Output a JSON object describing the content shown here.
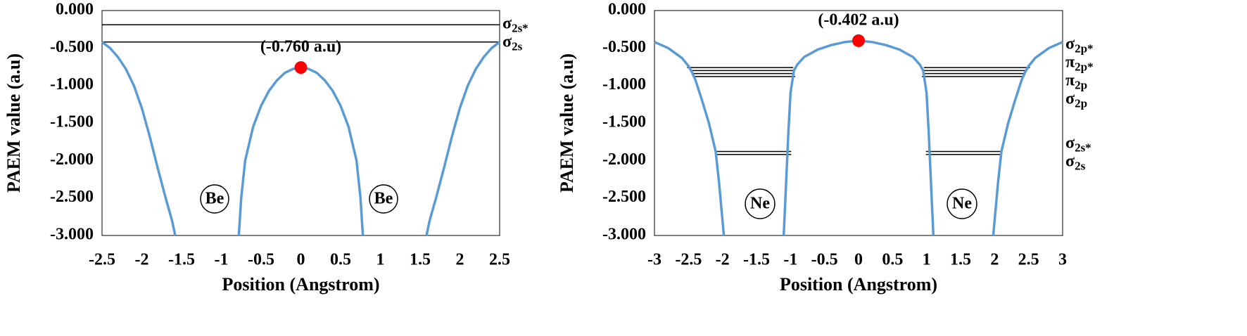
{
  "chart_data": [
    {
      "type": "line",
      "y_label": "PAEM value (a.u)",
      "x_label": "Position (Angstrom)",
      "xlim": [
        -2.5,
        2.5
      ],
      "xticks": [
        -2.5,
        -2,
        -1.5,
        -1,
        -0.5,
        0,
        0.5,
        1,
        1.5,
        2,
        2.5
      ],
      "ylim": [
        -3,
        0
      ],
      "yticks": [
        {
          "value": 0,
          "label": "0.000"
        },
        {
          "value": -0.5,
          "label": "-0.500"
        },
        {
          "value": -1,
          "label": "-1.000"
        },
        {
          "value": -1.5,
          "label": "-1.500"
        },
        {
          "value": -2,
          "label": "-2.000"
        },
        {
          "value": -2.5,
          "label": "-2.500"
        },
        {
          "value": -3,
          "label": "-3.000"
        }
      ],
      "grid": false,
      "series": [
        {
          "color": "#5b9bd5",
          "x": [
            -2.5,
            -2.4,
            -2.3,
            -2.2,
            -2.1,
            -2.0,
            -1.9,
            -1.8,
            -1.7,
            -1.62,
            -1.58,
            null,
            -0.78,
            -0.75,
            -0.7,
            -0.6,
            -0.5,
            -0.4,
            -0.3,
            -0.2,
            -0.1,
            0,
            0.1,
            0.2,
            0.3,
            0.4,
            0.5,
            0.6,
            0.7,
            0.75,
            0.78,
            null,
            1.58,
            1.62,
            1.7,
            1.8,
            1.9,
            2.0,
            2.1,
            2.2,
            2.3,
            2.4,
            2.5
          ],
          "values": [
            -0.42,
            -0.5,
            -0.62,
            -0.78,
            -1.0,
            -1.3,
            -1.68,
            -2.1,
            -2.5,
            -2.8,
            -3,
            null,
            -3,
            -2.5,
            -2.0,
            -1.55,
            -1.27,
            -1.07,
            -0.93,
            -0.83,
            -0.78,
            -0.76,
            -0.78,
            -0.83,
            -0.93,
            -1.07,
            -1.27,
            -1.55,
            -2.0,
            -2.5,
            -3,
            null,
            -3,
            -2.8,
            -2.5,
            -2.1,
            -1.68,
            -1.3,
            -1.0,
            -0.78,
            -0.62,
            -0.5,
            -0.42
          ]
        }
      ],
      "peak": {
        "x": 0,
        "y": -0.76,
        "label": "(-0.760 a.u)",
        "color": "#ff0000"
      },
      "levels": [
        {
          "symbol": "σ",
          "subscript": "2s*",
          "value": -0.19,
          "x_ranges": [
            [
              -2.5,
              2.5
            ]
          ]
        },
        {
          "symbol": "σ",
          "subscript": "2s",
          "value": -0.42,
          "x_ranges": [
            [
              -2.5,
              2.5
            ]
          ]
        }
      ],
      "level_color": "#000000",
      "atom_labels": [
        "Be",
        "Be"
      ]
    },
    {
      "type": "line",
      "y_label": "PAEM value (a.u)",
      "x_label": "Position (Angstrom)",
      "xlim": [
        -3,
        3
      ],
      "xticks": [
        -3,
        -2.5,
        -2,
        -1.5,
        -1,
        -0.5,
        0,
        0.5,
        1,
        1.5,
        2,
        2.5,
        3
      ],
      "ylim": [
        -3,
        0
      ],
      "yticks": [
        {
          "value": 0,
          "label": "0.000"
        },
        {
          "value": -0.5,
          "label": "-0.500"
        },
        {
          "value": -1,
          "label": "-1.000"
        },
        {
          "value": -1.5,
          "label": "-1.500"
        },
        {
          "value": -2,
          "label": "-2.000"
        },
        {
          "value": -2.5,
          "label": "-2.500"
        },
        {
          "value": -3,
          "label": "-3.000"
        }
      ],
      "grid": false,
      "series": [
        {
          "color": "#5b9bd5",
          "x": [
            -3,
            -2.8,
            -2.6,
            -2.5,
            -2.45,
            -2.4,
            -2.3,
            -2.2,
            -2.1,
            -2.05,
            -1.98,
            null,
            -1.1,
            -1.06,
            -1.03,
            -1.0,
            -0.95,
            -0.9,
            -0.8,
            -0.6,
            -0.4,
            -0.2,
            0,
            0.2,
            0.4,
            0.6,
            0.8,
            0.9,
            0.95,
            1.0,
            1.03,
            1.06,
            1.1,
            null,
            1.98,
            2.05,
            2.1,
            2.2,
            2.3,
            2.4,
            2.45,
            2.5,
            2.6,
            2.8,
            3
          ],
          "values": [
            -0.42,
            -0.5,
            -0.63,
            -0.74,
            -0.82,
            -0.92,
            -1.2,
            -1.5,
            -1.88,
            -2.3,
            -3,
            null,
            -3,
            -2.2,
            -1.6,
            -1.1,
            -0.8,
            -0.72,
            -0.62,
            -0.52,
            -0.46,
            -0.42,
            -0.402,
            -0.42,
            -0.46,
            -0.52,
            -0.62,
            -0.72,
            -0.8,
            -1.1,
            -1.6,
            -2.2,
            -3,
            null,
            -3,
            -2.3,
            -1.88,
            -1.5,
            -1.2,
            -0.92,
            -0.82,
            -0.74,
            -0.63,
            -0.5,
            -0.42
          ]
        }
      ],
      "peak": {
        "x": 0,
        "y": -0.402,
        "label": "(-0.402 a.u)",
        "color": "#ff0000"
      },
      "levels": [
        {
          "symbol": "σ",
          "subscript": "2p*",
          "value": -0.76,
          "x_ranges": [
            [
              -2.52,
              -0.96
            ],
            [
              0.96,
              2.52
            ]
          ]
        },
        {
          "symbol": "π",
          "subscript": "2p*",
          "value": -0.8,
          "x_ranges": [
            [
              -2.48,
              -0.95
            ],
            [
              0.95,
              2.48
            ]
          ]
        },
        {
          "symbol": "π",
          "subscript": "2p",
          "value": -0.84,
          "x_ranges": [
            [
              -2.45,
              -0.94
            ],
            [
              0.94,
              2.45
            ]
          ]
        },
        {
          "symbol": "σ",
          "subscript": "2p",
          "value": -0.88,
          "x_ranges": [
            [
              -2.43,
              -0.93
            ],
            [
              0.93,
              2.43
            ]
          ]
        },
        {
          "symbol": "σ",
          "subscript": "2s*",
          "value": -1.88,
          "x_ranges": [
            [
              -2.1,
              -0.99
            ],
            [
              0.99,
              2.1
            ]
          ]
        },
        {
          "symbol": "σ",
          "subscript": "2s",
          "value": -1.92,
          "x_ranges": [
            [
              -2.09,
              -0.99
            ],
            [
              0.99,
              2.09
            ]
          ]
        }
      ],
      "level_color": "#000000",
      "atom_labels": [
        "Ne",
        "Ne"
      ]
    }
  ]
}
